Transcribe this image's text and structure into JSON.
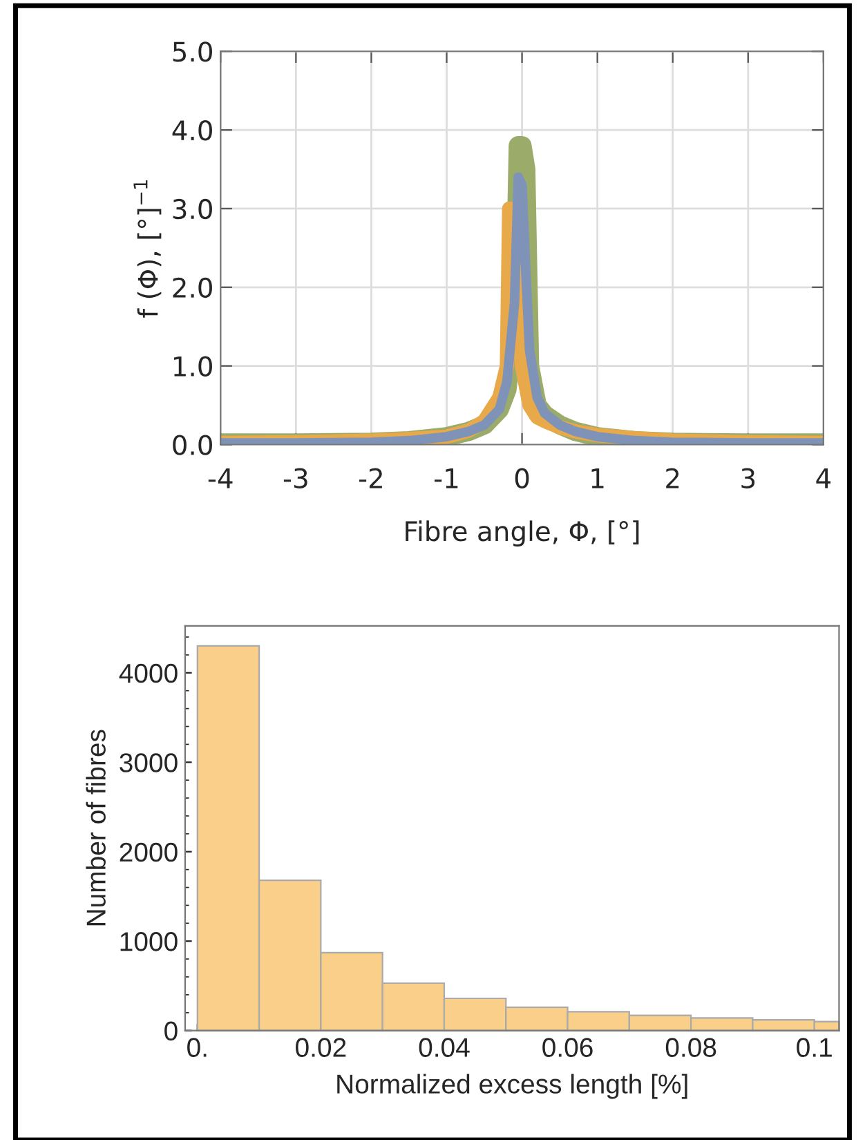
{
  "chart_data": [
    {
      "type": "line",
      "xlabel": "Fibre angle, Φ, [°]",
      "ylabel": "f (Φ), [°]$^{−1}$",
      "xlim": [
        -4,
        4
      ],
      "ylim": [
        0,
        5
      ],
      "xticks": [
        -4,
        -3,
        -2,
        -1,
        0,
        1,
        2,
        3,
        4
      ],
      "yticks": [
        {
          "value": 0,
          "label": "0.0"
        },
        {
          "value": 1,
          "label": "1.0"
        },
        {
          "value": 2,
          "label": "2.0"
        },
        {
          "value": 3,
          "label": "3.0"
        },
        {
          "value": 4,
          "label": "4.0"
        },
        {
          "value": 5,
          "label": "5.0"
        }
      ],
      "grid": true,
      "series": [
        {
          "color": "#9aab6a",
          "x": [
            -4,
            -3,
            -2,
            -1.5,
            -1,
            -0.7,
            -0.5,
            -0.3,
            -0.2,
            -0.1,
            -0.05,
            0,
            0.05,
            0.1,
            0.2,
            0.3,
            0.5,
            0.7,
            1,
            1.5,
            2,
            3,
            4
          ],
          "values": [
            0.02,
            0.02,
            0.03,
            0.05,
            0.1,
            0.17,
            0.25,
            0.45,
            0.7,
            1.5,
            3.8,
            3.8,
            3.5,
            1.0,
            0.5,
            0.38,
            0.25,
            0.17,
            0.1,
            0.05,
            0.03,
            0.02,
            0.02
          ]
        },
        {
          "color": "#e8a94a",
          "x": [
            -4,
            -3,
            -2,
            -1.5,
            -1,
            -0.7,
            -0.5,
            -0.3,
            -0.2,
            -0.17,
            -0.1,
            -0.05,
            0,
            0.1,
            0.2,
            0.3,
            0.5,
            0.7,
            1,
            1.5,
            2,
            3,
            4
          ],
          "values": [
            0.02,
            0.03,
            0.05,
            0.07,
            0.1,
            0.18,
            0.3,
            0.6,
            1.0,
            3.0,
            2.9,
            2.0,
            1.0,
            0.5,
            0.35,
            0.3,
            0.22,
            0.17,
            0.12,
            0.08,
            0.05,
            0.03,
            0.02
          ]
        },
        {
          "color": "#7f93b8",
          "x": [
            -4,
            -3,
            -2,
            -1.5,
            -1,
            -0.7,
            -0.5,
            -0.3,
            -0.2,
            -0.1,
            -0.05,
            0,
            0.05,
            0.1,
            0.2,
            0.3,
            0.5,
            0.7,
            1,
            1.5,
            2,
            3,
            4
          ],
          "values": [
            0.02,
            0.02,
            0.03,
            0.05,
            0.1,
            0.17,
            0.25,
            0.45,
            0.8,
            1.8,
            3.4,
            3.3,
            2.2,
            1.2,
            0.6,
            0.4,
            0.25,
            0.17,
            0.1,
            0.05,
            0.03,
            0.02,
            0.02
          ]
        }
      ]
    },
    {
      "type": "histogram",
      "xlabel": "Normalized excess length [%]",
      "ylabel": "Number of fibres",
      "xlim": [
        -0.002,
        0.104
      ],
      "ylim": [
        0,
        4525
      ],
      "xticks": [
        {
          "value": 0,
          "label": "0."
        },
        0.02,
        0.04,
        0.06,
        0.08,
        {
          "value": 0.1,
          "label": "0.1"
        }
      ],
      "yticks": [
        0,
        1000,
        2000,
        3000,
        4000
      ],
      "grid": false,
      "color": "#f9cf8a",
      "bins": [
        0,
        0.01,
        0.02,
        0.03,
        0.04,
        0.05,
        0.06,
        0.07,
        0.08,
        0.09,
        0.1,
        0.104
      ],
      "values": [
        4300,
        1680,
        870,
        530,
        360,
        260,
        210,
        170,
        140,
        120,
        100
      ]
    }
  ]
}
